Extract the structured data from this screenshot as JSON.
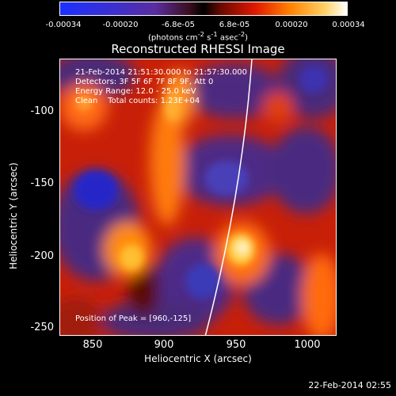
{
  "colorbar": {
    "ticks": [
      "-0.00034",
      "-0.00020",
      "-6.8e-05",
      "6.8e-05",
      "0.00020",
      "0.00034"
    ],
    "units_html": "(photons cm<sup>-2</sup> s<sup>-1</sup> asec<sup>-2</sup>)",
    "units": "(photons cm-2 s-1 asec-2)"
  },
  "title": "Reconstructed RHESSI Image",
  "info": {
    "line1": "21-Feb-2014 21:51:30.000 to 21:57:30.000",
    "line2": "Detectors: 3F 5F 6F 7F 8F 9F, Att 0",
    "line3": "Energy Range: 12.0 - 25.0 keV",
    "line4": "Clean    Total counts: 1.23E+04",
    "peak": "Position of Peak = [960,-125]"
  },
  "axes": {
    "xlabel": "Heliocentric X (arcsec)",
    "ylabel": "Heliocentric Y (arcsec)",
    "xticks": [
      "850",
      "900",
      "950",
      "1000"
    ],
    "yticks": [
      "-100",
      "-150",
      "-200",
      "-250"
    ]
  },
  "footer": "22-Feb-2014 02:55",
  "colors": {
    "limb": "#ffffff"
  }
}
